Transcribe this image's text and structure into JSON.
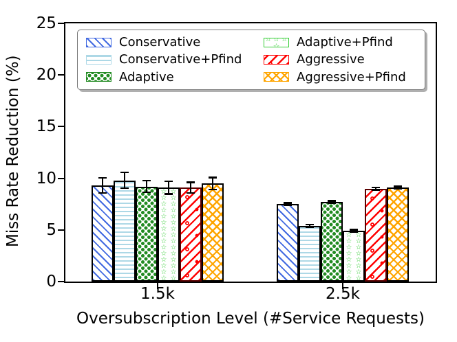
{
  "chart_data": {
    "type": "bar",
    "title": "",
    "xlabel": "Oversubscription Level (#Service Requests)",
    "ylabel": "Miss Rate Reduction (%)",
    "categories": [
      "1.5k",
      "2.5k"
    ],
    "yticks": [
      0,
      5,
      10,
      15,
      20,
      25
    ],
    "ylim": [
      0,
      25
    ],
    "grid": false,
    "legend_position": "upper center, 2 columns, inside axes",
    "error_bar_color": "#000000",
    "axis_color": "#000000",
    "series": [
      {
        "name": "Conservative",
        "color": "#4169E1",
        "edge": "#000000",
        "hatch": "diagonal-forward",
        "values": [
          9.3,
          7.5
        ],
        "errors": [
          0.8,
          0.2
        ]
      },
      {
        "name": "Conservative+Pfind",
        "color": "#ADD8E6",
        "edge": "#000000",
        "hatch": "horizontal-lines",
        "values": [
          9.8,
          5.4
        ],
        "errors": [
          0.85,
          0.2
        ]
      },
      {
        "name": "Adaptive",
        "color": "#228B22",
        "edge": "#000000",
        "hatch": "dots",
        "values": [
          9.2,
          7.7
        ],
        "errors": [
          0.65,
          0.2
        ]
      },
      {
        "name": "Adaptive+Pfind",
        "color": "#32CD32",
        "edge": "#000000",
        "hatch": "stars",
        "values": [
          9.1,
          4.9
        ],
        "errors": [
          0.7,
          0.2
        ]
      },
      {
        "name": "Aggressive",
        "color": "#FF0000",
        "edge": "#5A0000",
        "hatch": "back-diagonal-with-dots",
        "values": [
          9.1,
          9.0
        ],
        "errors": [
          0.6,
          0.2
        ]
      },
      {
        "name": "Aggressive+Pfind",
        "color": "#FFA500",
        "edge": "#000000",
        "hatch": "crosshatch",
        "values": [
          9.5,
          9.1
        ],
        "errors": [
          0.65,
          0.2
        ]
      }
    ]
  }
}
